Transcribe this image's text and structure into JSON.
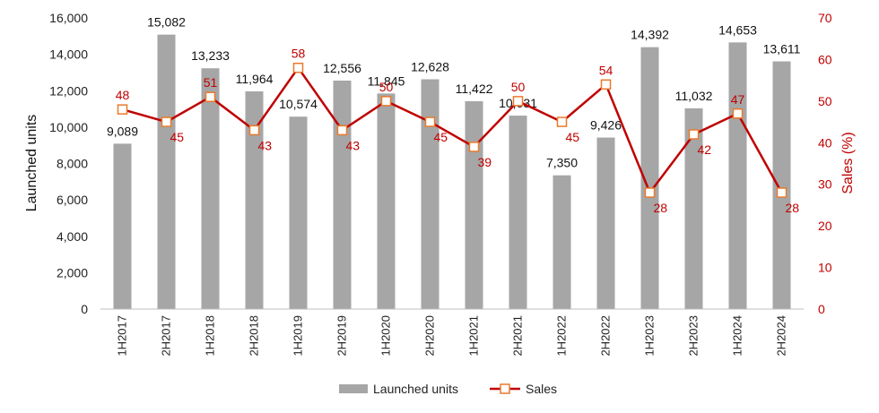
{
  "chart_data": {
    "type": "bar",
    "categories": [
      "1H2017",
      "2H2017",
      "1H2018",
      "2H2018",
      "1H2019",
      "2H2019",
      "1H2020",
      "2H2020",
      "1H2021",
      "2H2021",
      "1H2022",
      "2H2022",
      "1H2023",
      "2H2023",
      "1H2024",
      "2H2024"
    ],
    "series": [
      {
        "name": "Launched units",
        "type": "bar",
        "axis": "left",
        "color": "#a6a6a6",
        "values": [
          9089,
          15082,
          13233,
          11964,
          10574,
          12556,
          11845,
          12628,
          11422,
          10631,
          7350,
          9426,
          14392,
          11032,
          14653,
          13611
        ],
        "labels": [
          "9,089",
          "15,082",
          "13,233",
          "11,964",
          "10,574",
          "12,556",
          "11,845",
          "12,628",
          "11,422",
          "10,631",
          "7,350",
          "9,426",
          "14,392",
          "11,032",
          "14,653",
          "13,611"
        ]
      },
      {
        "name": "Sales",
        "type": "line",
        "axis": "right",
        "color": "#c00000",
        "marker_color": "#e97a2b",
        "values": [
          48,
          45,
          51,
          43,
          58,
          43,
          50,
          45,
          39,
          50,
          45,
          54,
          28,
          42,
          47,
          28
        ]
      }
    ],
    "ylabel": "Launched units",
    "y2label": "Sales (%)",
    "ylim": [
      0,
      16000
    ],
    "y2lim": [
      0,
      70
    ],
    "yticks": [
      "0",
      "2,000",
      "4,000",
      "6,000",
      "8,000",
      "10,000",
      "12,000",
      "14,000",
      "16,000"
    ],
    "y2ticks": [
      "0",
      "10",
      "20",
      "30",
      "40",
      "50",
      "60",
      "70"
    ],
    "legend_position": "bottom",
    "grid": false
  }
}
